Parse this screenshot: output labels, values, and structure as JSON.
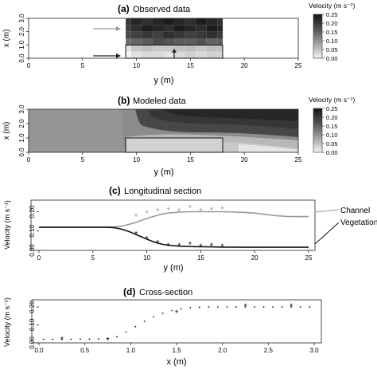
{
  "chart_data": [
    {
      "type": "heatmap",
      "panel": "(a)",
      "title": "Observed data",
      "xlabel": "y (m)",
      "ylabel": "x (m)",
      "xlim": [
        0,
        25
      ],
      "ylim": [
        0,
        3
      ],
      "xticks": [
        "0",
        "5",
        "10",
        "15",
        "20",
        "25"
      ],
      "yticks": [
        "0.0",
        "1.0",
        "2.0",
        "3.0"
      ],
      "data_extent_y": [
        9,
        18
      ],
      "vegetation_patch": {
        "y": [
          9,
          18
        ],
        "x": [
          0,
          1.0
        ]
      },
      "arrows": [
        {
          "from_y": 6,
          "to_y": 8.3,
          "x": 2.5,
          "color": "#999999"
        },
        {
          "from_y": 6,
          "to_y": 8.3,
          "x": 0.25,
          "color": "#222222"
        },
        {
          "from_y": 13.5,
          "to_y": 13.5,
          "from_x": 0.05,
          "to_x": 0.6,
          "color": "#222222",
          "vertical": true
        }
      ],
      "colorbar": {
        "title": "Velocity (m s⁻¹)",
        "ticks": [
          "0.25",
          "0.20",
          "0.15",
          "0.10",
          "0.05",
          "0.00"
        ],
        "range": [
          0,
          0.25
        ]
      },
      "field_columns_y": [
        9,
        10,
        11,
        12,
        13,
        14,
        15,
        16,
        17,
        18
      ],
      "field": [
        [
          0.0,
          0.02,
          0.03,
          0.03,
          0.02,
          0.03,
          0.04,
          0.03,
          0.04,
          0.04
        ],
        [
          0.02,
          0.05,
          0.06,
          0.05,
          0.05,
          0.06,
          0.06,
          0.05,
          0.06,
          0.06
        ],
        [
          0.15,
          0.16,
          0.17,
          0.19,
          0.18,
          0.17,
          0.17,
          0.18,
          0.16,
          0.17
        ],
        [
          0.19,
          0.2,
          0.21,
          0.2,
          0.22,
          0.21,
          0.2,
          0.21,
          0.22,
          0.21
        ],
        [
          0.2,
          0.22,
          0.24,
          0.23,
          0.22,
          0.24,
          0.23,
          0.22,
          0.24,
          0.23
        ],
        [
          0.21,
          0.23,
          0.22,
          0.23,
          0.24,
          0.23,
          0.22,
          0.24,
          0.23,
          0.22
        ]
      ],
      "field_rows_x": [
        0.25,
        0.75,
        1.25,
        1.75,
        2.25,
        2.75
      ]
    },
    {
      "type": "heatmap",
      "panel": "(b)",
      "title": "Modeled data",
      "xlabel": "y (m)",
      "ylabel": "x (m)",
      "xlim": [
        0,
        25
      ],
      "ylim": [
        0,
        3
      ],
      "xticks": [
        "0",
        "5",
        "10",
        "15",
        "20",
        "25"
      ],
      "yticks": [
        "0.0",
        "1.0",
        "2.0",
        "3.0"
      ],
      "vegetation_patch": {
        "y": [
          9,
          18
        ],
        "x": [
          0,
          1.0
        ]
      },
      "colorbar": {
        "title": "Velocity (m s⁻¹)",
        "ticks": [
          "0.25",
          "0.20",
          "0.15",
          "0.10",
          "0.05",
          "0.00"
        ],
        "range": [
          0,
          0.25
        ]
      }
    },
    {
      "type": "line",
      "panel": "(c)",
      "title": "Longitudinal section",
      "xlabel": "y (m)",
      "ylabel": "Velocity (m s⁻¹)",
      "xlim": [
        0,
        25
      ],
      "ylim": [
        0,
        0.26
      ],
      "xticks": [
        "0",
        "5",
        "10",
        "15",
        "20",
        "25"
      ],
      "yticks": [
        "0.00",
        "0.10",
        "0.20"
      ],
      "series": [
        {
          "name": "Channel",
          "color": "#9a9a9a",
          "x": [
            0,
            2,
            4,
            6,
            6.5,
            7,
            7.5,
            8,
            8.5,
            9,
            9.5,
            10,
            10.5,
            11,
            11.5,
            12,
            12.5,
            13,
            14,
            15,
            16,
            17,
            18,
            19,
            20,
            21,
            22,
            23,
            24,
            25
          ],
          "y": [
            0.12,
            0.12,
            0.12,
            0.12,
            0.121,
            0.122,
            0.125,
            0.13,
            0.137,
            0.145,
            0.155,
            0.165,
            0.174,
            0.182,
            0.189,
            0.193,
            0.196,
            0.198,
            0.2,
            0.2,
            0.2,
            0.2,
            0.199,
            0.197,
            0.193,
            0.186,
            0.18,
            0.176,
            0.175,
            0.175
          ],
          "observed_x": [
            9,
            10,
            11,
            12,
            13,
            14,
            15,
            16,
            17
          ],
          "observed_y": [
            0.175,
            0.195,
            0.205,
            0.21,
            0.205,
            0.22,
            0.205,
            0.21,
            0.215
          ]
        },
        {
          "name": "Vegetation",
          "color": "#111111",
          "x": [
            0,
            2,
            4,
            6,
            6.5,
            7,
            7.5,
            8,
            8.5,
            9,
            9.5,
            10,
            10.5,
            11,
            11.5,
            12,
            13,
            14,
            15,
            16,
            17,
            18,
            19,
            20,
            21,
            22,
            23,
            24,
            25
          ],
          "y": [
            0.12,
            0.12,
            0.12,
            0.12,
            0.119,
            0.117,
            0.112,
            0.104,
            0.094,
            0.082,
            0.07,
            0.058,
            0.047,
            0.038,
            0.031,
            0.027,
            0.022,
            0.02,
            0.019,
            0.018,
            0.017,
            0.017,
            0.016,
            0.016,
            0.016,
            0.016,
            0.016,
            0.016,
            0.016
          ],
          "observed_x": [
            9,
            10,
            11,
            12,
            13,
            14,
            15,
            16,
            17
          ],
          "observed_y": [
            0.085,
            0.06,
            0.04,
            0.025,
            0.025,
            0.03,
            0.02,
            0.025,
            0.02
          ]
        }
      ]
    },
    {
      "type": "scatter",
      "panel": "(d)",
      "title": "Cross-section",
      "xlabel": "x (m)",
      "ylabel": "Velocity (m s⁻¹)",
      "xlim": [
        0,
        3
      ],
      "ylim": [
        0,
        0.24
      ],
      "xticks": [
        "0.0",
        "0.5",
        "1.0",
        "1.5",
        "2.0",
        "2.5",
        "3.0"
      ],
      "yticks": [
        "0.00",
        "0.10",
        "0.20"
      ],
      "series": [
        {
          "marker": "dot",
          "x": [
            0.05,
            0.15,
            0.25,
            0.35,
            0.45,
            0.55,
            0.65,
            0.75,
            0.85,
            0.95,
            1.05,
            1.15,
            1.25,
            1.35,
            1.45,
            1.55,
            1.65,
            1.75,
            1.85,
            1.95,
            2.05,
            2.15,
            2.25,
            2.35,
            2.45,
            2.55,
            2.65,
            2.75,
            2.85,
            2.95
          ],
          "y": [
            0.02,
            0.02,
            0.02,
            0.02,
            0.021,
            0.021,
            0.022,
            0.025,
            0.035,
            0.06,
            0.09,
            0.12,
            0.145,
            0.165,
            0.18,
            0.19,
            0.196,
            0.198,
            0.2,
            0.2,
            0.2,
            0.2,
            0.2,
            0.2,
            0.2,
            0.2,
            0.2,
            0.2,
            0.2,
            0.2
          ]
        },
        {
          "marker": "star",
          "x": [
            0.25,
            0.75,
            1.5,
            2.25,
            2.75
          ],
          "y": [
            0.02,
            0.015,
            0.17,
            0.205,
            0.205
          ]
        }
      ]
    }
  ]
}
